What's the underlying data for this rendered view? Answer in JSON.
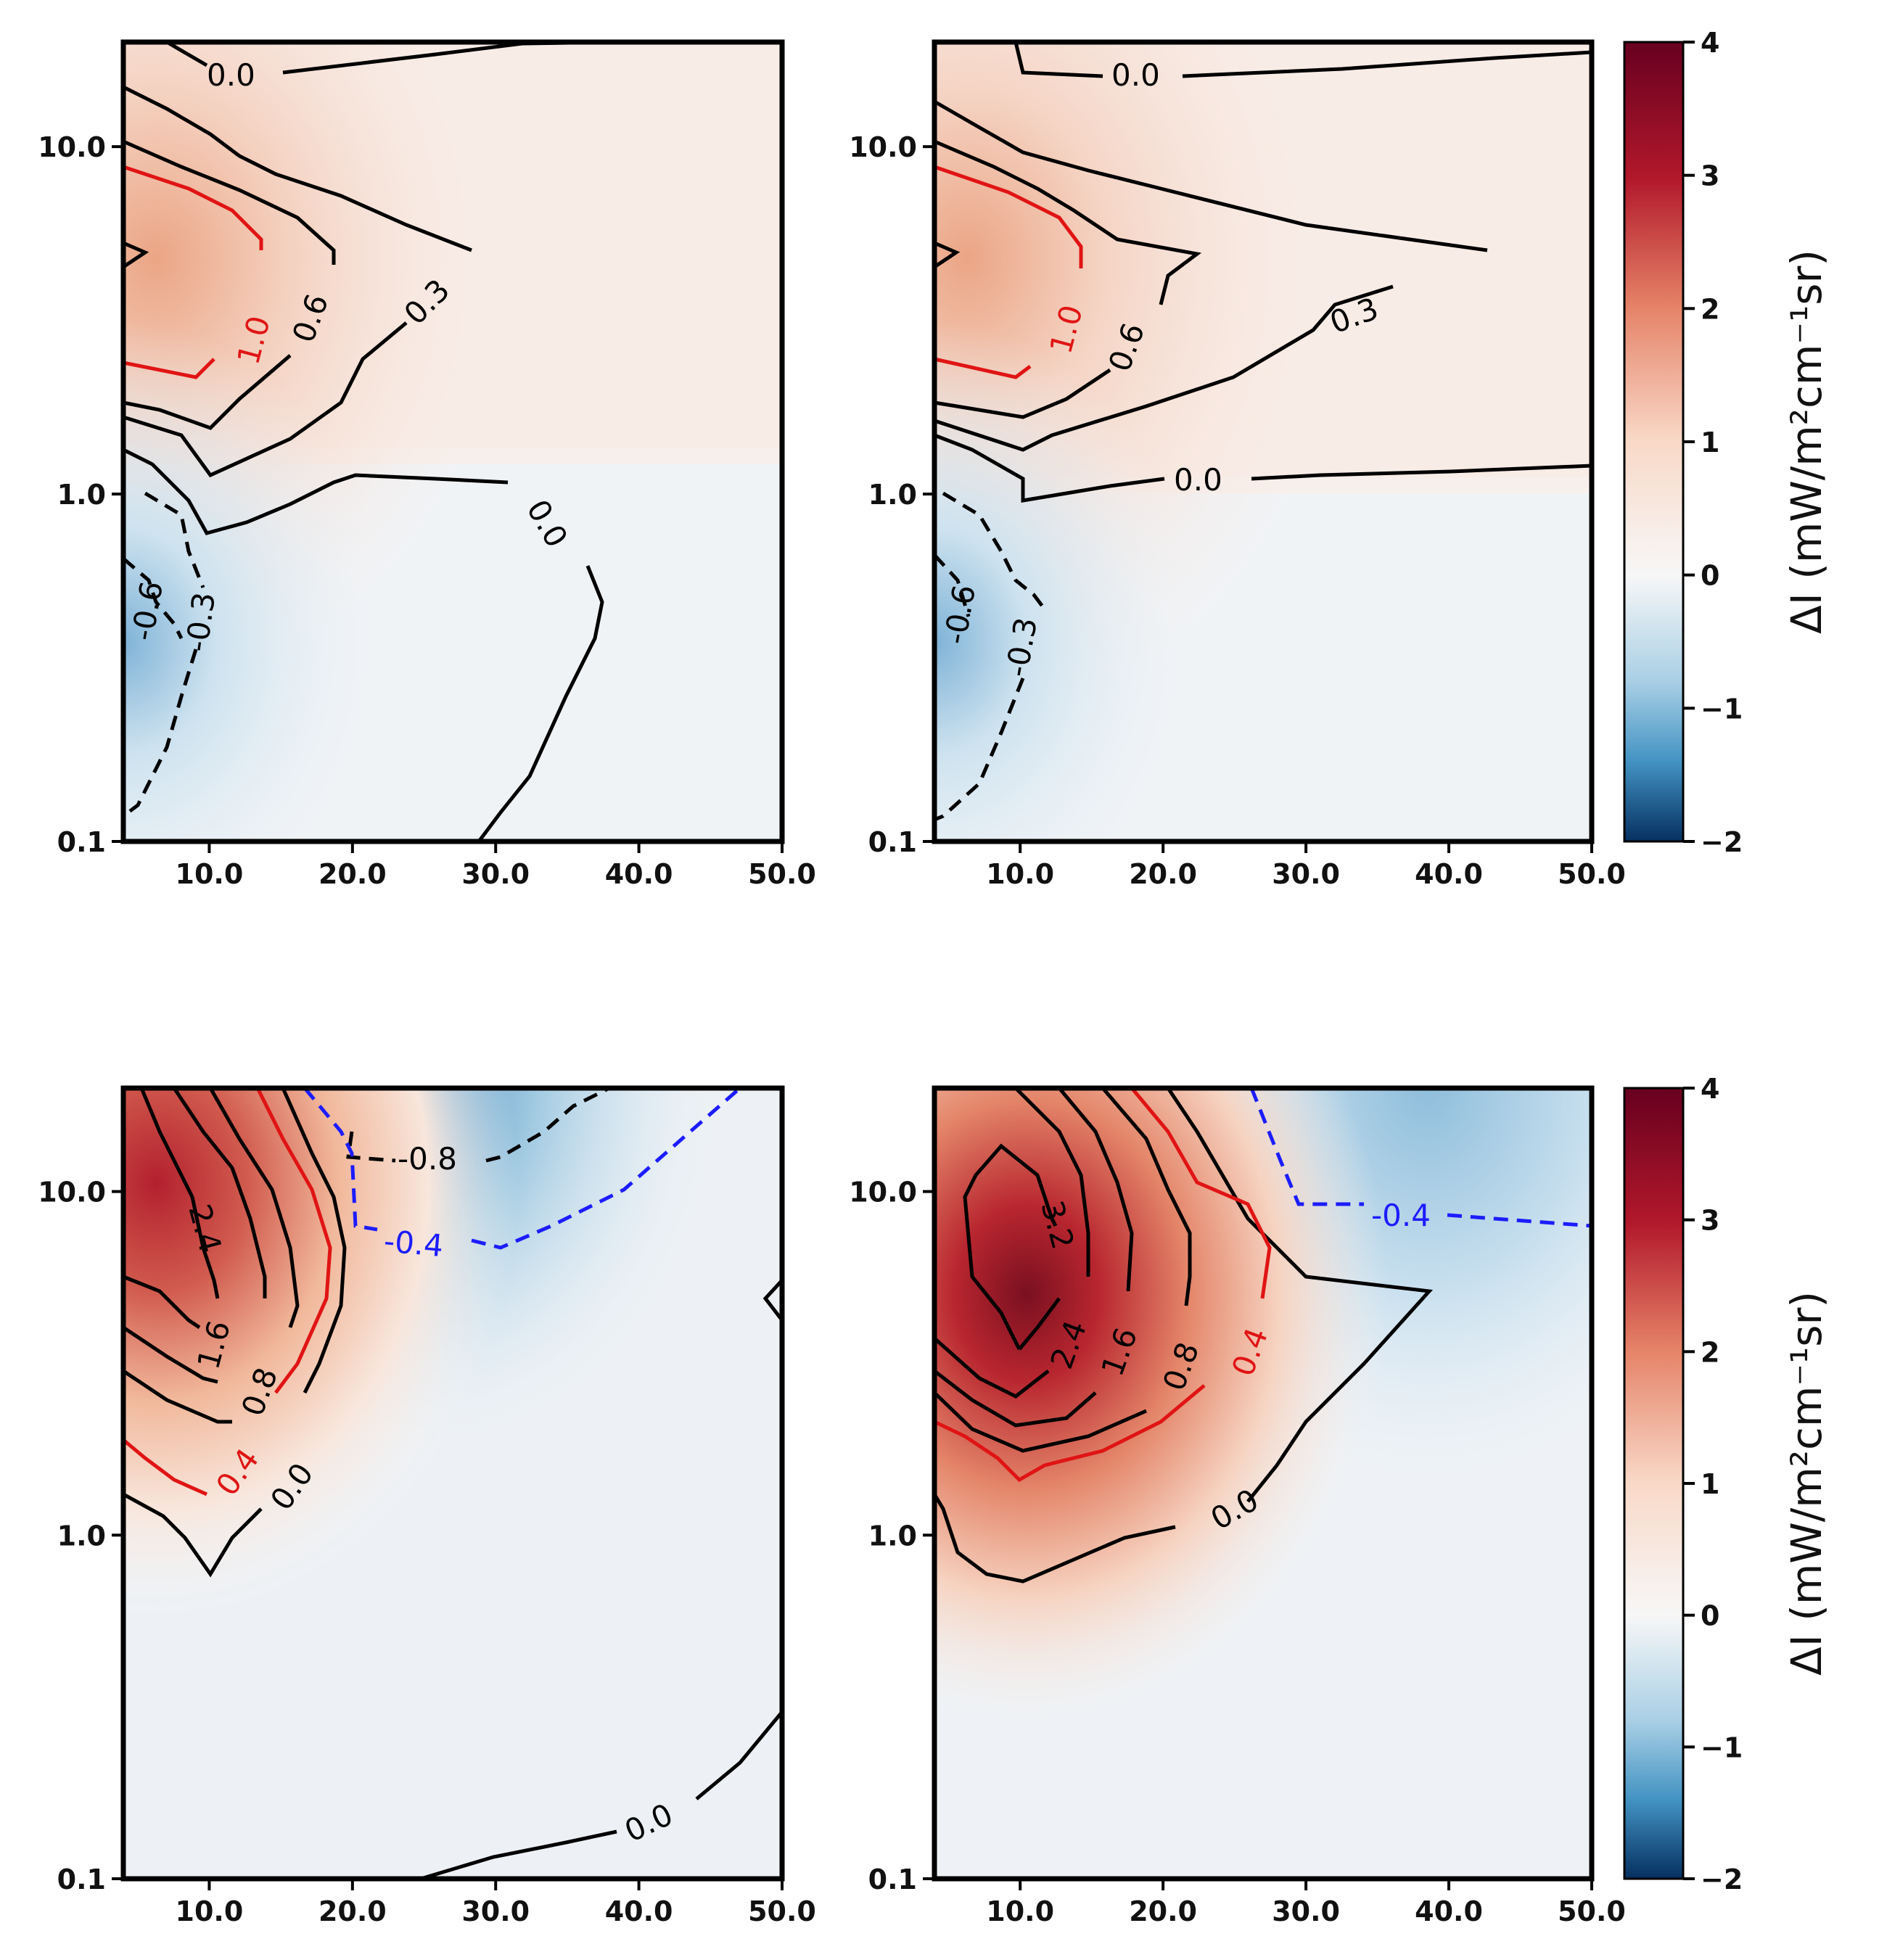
{
  "chart_data": [
    {
      "type": "contour",
      "panel": "top-left",
      "x_ticks": [
        10.0,
        20.0,
        30.0,
        40.0,
        50.0
      ],
      "x_tick_labels": [
        "10.0",
        "20.0",
        "30.0",
        "40.0",
        "50.0"
      ],
      "xlim": [
        4,
        50
      ],
      "y_scale": "log",
      "y_ticks": [
        0.1,
        1.0,
        10.0
      ],
      "y_tick_labels": [
        "0.1",
        "1.0",
        "10.0"
      ],
      "ylim": [
        0.1,
        20
      ],
      "contour_labels": [
        "0.0",
        "1.0",
        "0.6",
        "0.3",
        "0.0",
        "-0.6",
        "-0.3"
      ],
      "colormap": {
        "min": -2,
        "max": 4,
        "low": "#1f4e8c",
        "mid": "#f7f7f7",
        "high": "#7a1020"
      }
    },
    {
      "type": "contour",
      "panel": "top-right",
      "x_ticks": [
        10.0,
        20.0,
        30.0,
        40.0,
        50.0
      ],
      "x_tick_labels": [
        "10.0",
        "20.0",
        "30.0",
        "40.0",
        "50.0"
      ],
      "xlim": [
        4,
        50
      ],
      "y_scale": "log",
      "y_ticks": [
        0.1,
        1.0,
        10.0
      ],
      "y_tick_labels": [
        "0.1",
        "1.0",
        "10.0"
      ],
      "ylim": [
        0.1,
        20
      ],
      "contour_labels": [
        "0.0",
        "1.0",
        "0.6",
        "0.3",
        "0.0",
        "-0.6",
        "-0.3"
      ],
      "colorbar": {
        "ticks": [
          4,
          3,
          2,
          1,
          0,
          -1,
          -2
        ],
        "tick_labels": [
          "4",
          "3",
          "2",
          "1",
          "0",
          "−1",
          "−2"
        ],
        "label": "ΔI (mW/m²cm⁻¹sr)"
      }
    },
    {
      "type": "contour",
      "panel": "bottom-left",
      "x_ticks": [
        10.0,
        20.0,
        30.0,
        40.0,
        50.0
      ],
      "x_tick_labels": [
        "10.0",
        "20.0",
        "30.0",
        "40.0",
        "50.0"
      ],
      "xlim": [
        4,
        50
      ],
      "y_scale": "log",
      "y_ticks": [
        0.1,
        1.0,
        10.0
      ],
      "y_tick_labels": [
        "0.1",
        "1.0",
        "10.0"
      ],
      "ylim": [
        0.1,
        20
      ],
      "contour_labels": [
        "2.4",
        "1.6",
        "0.8",
        "0.4",
        "0.0",
        "-0.8",
        "-0.4",
        "0.0"
      ]
    },
    {
      "type": "contour",
      "panel": "bottom-right",
      "x_ticks": [
        10.0,
        20.0,
        30.0,
        40.0,
        50.0
      ],
      "x_tick_labels": [
        "10.0",
        "20.0",
        "30.0",
        "40.0",
        "50.0"
      ],
      "xlim": [
        4,
        50
      ],
      "y_scale": "log",
      "y_ticks": [
        0.1,
        1.0,
        10.0
      ],
      "y_tick_labels": [
        "0.1",
        "1.0",
        "10.0"
      ],
      "ylim": [
        0.1,
        20
      ],
      "contour_labels": [
        "3.2",
        "2.4",
        "1.6",
        "0.8",
        "0.4",
        "0.0",
        "-0.4"
      ],
      "colorbar": {
        "ticks": [
          4,
          3,
          2,
          1,
          0,
          -1,
          -2
        ],
        "tick_labels": [
          "4",
          "3",
          "2",
          "1",
          "0",
          "−1",
          "−2"
        ],
        "label": "ΔI (mW/m²cm⁻¹sr)"
      }
    }
  ]
}
